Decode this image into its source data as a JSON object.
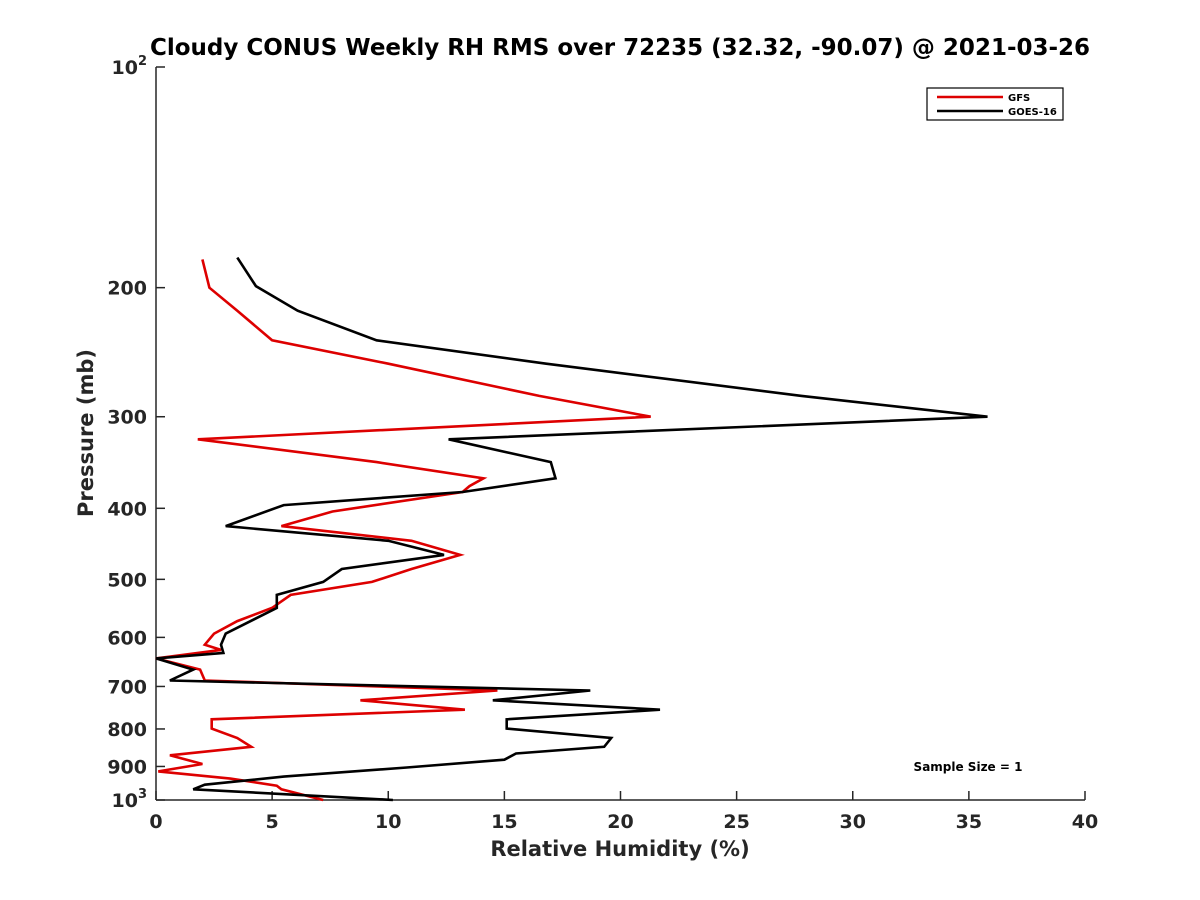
{
  "chart_data": {
    "type": "line",
    "title": "Cloudy CONUS Weekly RH RMS over 72235 (32.32, -90.07) @ 2021-03-26",
    "xlabel": "Relative Humidity (%)",
    "ylabel": "Pressure (mb)",
    "xlim": [
      0,
      40
    ],
    "ylim": [
      100,
      1000
    ],
    "yscale": "log",
    "y_reversed": true,
    "xticks": [
      0,
      5,
      10,
      15,
      20,
      25,
      30,
      35,
      40
    ],
    "xtick_labels": [
      "0",
      "5",
      "10",
      "15",
      "20",
      "25",
      "30",
      "35",
      "40"
    ],
    "yticks": [
      100,
      200,
      300,
      400,
      500,
      600,
      700,
      800,
      900,
      1000
    ],
    "ytick_labels": [
      {
        "base": "10",
        "exp": "2"
      },
      {
        "base": "200",
        "exp": ""
      },
      {
        "base": "300",
        "exp": ""
      },
      {
        "base": "400",
        "exp": ""
      },
      {
        "base": "500",
        "exp": ""
      },
      {
        "base": "600",
        "exp": ""
      },
      {
        "base": "700",
        "exp": ""
      },
      {
        "base": "800",
        "exp": ""
      },
      {
        "base": "900",
        "exp": ""
      },
      {
        "base": "10",
        "exp": "3"
      }
    ],
    "legend_position": "top-right",
    "annotation": "Sample Size = 1",
    "series": [
      {
        "name": "GFS",
        "color": "#dd0000",
        "points": [
          [
            2.0,
            183
          ],
          [
            2.3,
            200
          ],
          [
            3.5,
            215
          ],
          [
            5.0,
            236
          ],
          [
            10.0,
            254
          ],
          [
            16.5,
            281
          ],
          [
            21.3,
            300
          ],
          [
            1.8,
            322
          ],
          [
            9.5,
            346
          ],
          [
            14.1,
            364
          ],
          [
            13.5,
            373
          ],
          [
            13.2,
            380
          ],
          [
            7.6,
            404
          ],
          [
            5.4,
            423
          ],
          [
            11.0,
            443
          ],
          [
            13.1,
            463
          ],
          [
            11.0,
            484
          ],
          [
            9.3,
            504
          ],
          [
            5.8,
            525
          ],
          [
            5.0,
            547
          ],
          [
            3.5,
            570
          ],
          [
            2.5,
            593
          ],
          [
            2.1,
            614
          ],
          [
            2.8,
            624
          ],
          [
            0.0,
            641
          ],
          [
            1.9,
            664
          ],
          [
            2.1,
            687
          ],
          [
            14.7,
            709
          ],
          [
            8.8,
            731
          ],
          [
            13.3,
            753
          ],
          [
            2.4,
            776
          ],
          [
            2.4,
            799
          ],
          [
            3.5,
            823
          ],
          [
            4.1,
            846
          ],
          [
            0.6,
            869
          ],
          [
            2.0,
            893
          ],
          [
            0.1,
            914
          ],
          [
            3.2,
            935
          ],
          [
            5.2,
            956
          ],
          [
            5.4,
            967
          ],
          [
            7.2,
            1000
          ]
        ]
      },
      {
        "name": "GOES-16",
        "color": "#000000",
        "points": [
          [
            3.5,
            182
          ],
          [
            4.3,
            199
          ],
          [
            6.1,
            215
          ],
          [
            9.5,
            236
          ],
          [
            16.8,
            254
          ],
          [
            27.8,
            281
          ],
          [
            35.8,
            300
          ],
          [
            12.6,
            322
          ],
          [
            17.0,
            346
          ],
          [
            17.2,
            364
          ],
          [
            13.2,
            380
          ],
          [
            5.5,
            396
          ],
          [
            3.0,
            423
          ],
          [
            10.0,
            443
          ],
          [
            12.4,
            463
          ],
          [
            8.0,
            484
          ],
          [
            7.2,
            504
          ],
          [
            5.2,
            525
          ],
          [
            5.2,
            547
          ],
          [
            3.0,
            593
          ],
          [
            2.8,
            614
          ],
          [
            2.9,
            630
          ],
          [
            0.0,
            641
          ],
          [
            1.6,
            664
          ],
          [
            0.6,
            687
          ],
          [
            18.7,
            709
          ],
          [
            14.5,
            731
          ],
          [
            21.7,
            753
          ],
          [
            15.1,
            776
          ],
          [
            15.1,
            799
          ],
          [
            19.6,
            823
          ],
          [
            19.3,
            846
          ],
          [
            15.5,
            864
          ],
          [
            15.0,
            881
          ],
          [
            10.8,
            903
          ],
          [
            5.5,
            929
          ],
          [
            2.1,
            953
          ],
          [
            1.6,
            967
          ],
          [
            10.2,
            1000
          ]
        ]
      }
    ]
  }
}
